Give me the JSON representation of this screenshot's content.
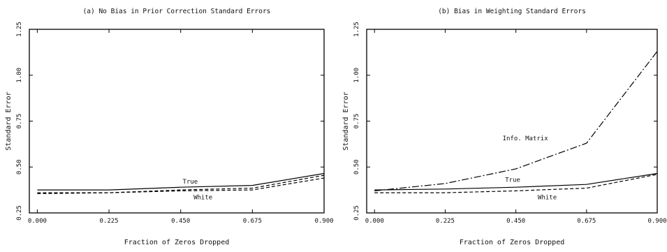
{
  "chart_data": [
    {
      "type": "line",
      "title": "(a) No Bias in Prior Correction Standard Errors",
      "xlabel": "Fraction of Zeros Dropped",
      "ylabel": "Standard Error",
      "x": [
        0.0,
        0.225,
        0.45,
        0.675,
        0.9
      ],
      "xticks": [
        "0.000",
        "0.225",
        "0.450",
        "0.675",
        "0.900"
      ],
      "yticks": [
        "0.25",
        "0.50",
        "0.75",
        "1.00",
        "1.25"
      ],
      "xlim": [
        -0.025,
        0.9
      ],
      "ylim": [
        0.25,
        1.25
      ],
      "grid": false,
      "series": [
        {
          "name": "True",
          "style": "solid",
          "values": [
            0.375,
            0.375,
            0.39,
            0.4,
            0.465
          ]
        },
        {
          "name": "White",
          "style": "dashed",
          "values": [
            0.36,
            0.36,
            0.375,
            0.385,
            0.455
          ]
        },
        {
          "name": "",
          "style": "dashed",
          "values": [
            0.355,
            0.36,
            0.37,
            0.375,
            0.44
          ]
        }
      ],
      "annotations": [
        {
          "text": "True",
          "x": 0.48,
          "y": 0.41
        },
        {
          "text": "White",
          "x": 0.52,
          "y": 0.325
        }
      ]
    },
    {
      "type": "line",
      "title": "(b) Bias in Weighting Standard Errors",
      "xlabel": "Fraction of Zeros Dropped",
      "ylabel": "Standard Error",
      "x": [
        0.0,
        0.225,
        0.45,
        0.675,
        0.9
      ],
      "xticks": [
        "0.000",
        "0.225",
        "0.450",
        "0.675",
        "0.900"
      ],
      "yticks": [
        "0.25",
        "0.50",
        "0.75",
        "1.00",
        "1.25"
      ],
      "xlim": [
        -0.025,
        0.9
      ],
      "ylim": [
        0.25,
        1.25
      ],
      "grid": false,
      "series": [
        {
          "name": "True",
          "style": "solid",
          "values": [
            0.375,
            0.38,
            0.39,
            0.405,
            0.465
          ]
        },
        {
          "name": "White",
          "style": "dashed",
          "values": [
            0.36,
            0.36,
            0.37,
            0.385,
            0.46
          ]
        },
        {
          "name": "Info. Matrix",
          "style": "dashdot",
          "values": [
            0.37,
            0.41,
            0.49,
            0.63,
            1.13
          ]
        }
      ],
      "annotations": [
        {
          "text": "Info. Matrix",
          "x": 0.48,
          "y": 0.645
        },
        {
          "text": "True",
          "x": 0.44,
          "y": 0.42
        },
        {
          "text": "White",
          "x": 0.55,
          "y": 0.325
        }
      ]
    }
  ]
}
